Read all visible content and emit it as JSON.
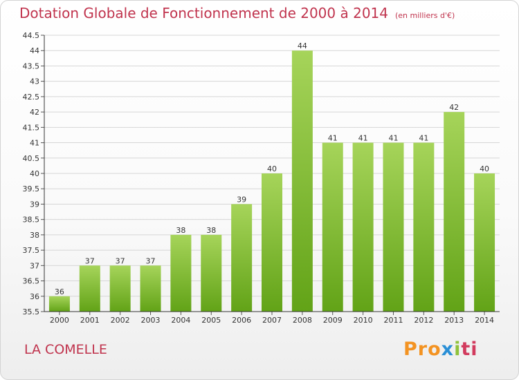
{
  "title": "Dotation Globale de Fonctionnement de 2000 à 2014",
  "subtitle": "(en milliers d'€)",
  "commune": "LA COMELLE",
  "logo": {
    "part1": "Pro",
    "part2": "x",
    "part3": "i",
    "part4": "ti"
  },
  "colors": {
    "title": "#c0334d",
    "bar_top": "#a6d45a",
    "bar_bottom": "#62a317",
    "grid": "#d6d6d6"
  },
  "chart_data": {
    "type": "bar",
    "categories": [
      "2000",
      "2001",
      "2002",
      "2003",
      "2004",
      "2005",
      "2006",
      "2007",
      "2008",
      "2009",
      "2010",
      "2011",
      "2012",
      "2013",
      "2014"
    ],
    "values": [
      36,
      37,
      37,
      37,
      38,
      38,
      39,
      40,
      44,
      41,
      41,
      41,
      41,
      42,
      40
    ],
    "ylim": [
      35.5,
      44.5
    ],
    "yticks": [
      "35.5",
      "36",
      "36.5",
      "37",
      "37.5",
      "38",
      "38.5",
      "39",
      "39.5",
      "40",
      "40.5",
      "41",
      "41.5",
      "42",
      "42.5",
      "43",
      "43.5",
      "44",
      "44.5"
    ],
    "xlabel": "",
    "ylabel": "",
    "grid": true
  }
}
